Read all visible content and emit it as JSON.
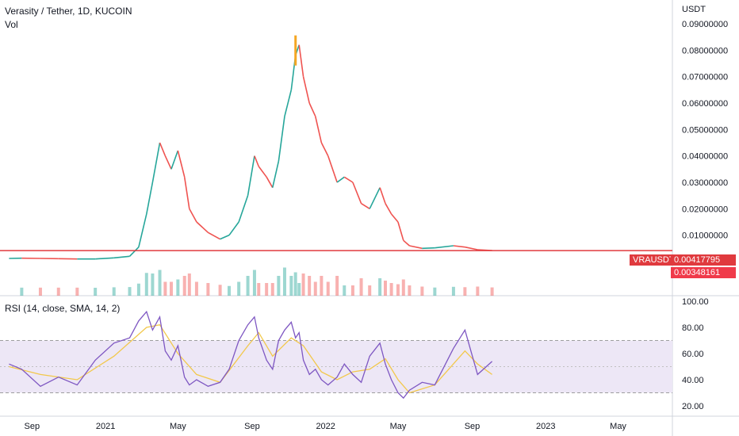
{
  "header": {
    "symbol_title": "Verasity / Tether, 1D, KUCOIN",
    "volume_label": "Vol",
    "currency": "USDT"
  },
  "badges": {
    "symbol": "VRAUSDT",
    "last_price": "0.00417795",
    "secondary_value": "0.00348161"
  },
  "rsi": {
    "title": "RSI (14, close, SMA, 14, 2)",
    "upper_band": 70,
    "lower_band": 30,
    "ticks": [
      "100.00",
      "80.00",
      "60.00",
      "40.00",
      "20.00"
    ]
  },
  "colors": {
    "up": "#26a69a",
    "down": "#ef5350",
    "highlight": "#f5a623",
    "price_line": "#e03a3e",
    "rsi_line": "#7e57c2",
    "rsi_sma": "#f2c84b",
    "rsi_band": "#ede7f6"
  },
  "chart_data": [
    {
      "type": "line",
      "title": "Verasity / Tether, 1D, KUCOIN",
      "y_axis_label": "USDT",
      "x_ticks": [
        "Sep",
        "2021",
        "May",
        "Sep",
        "2022",
        "May",
        "Sep",
        "2023",
        "May"
      ],
      "y_ticks": [
        "0.09000000",
        "0.08000000",
        "0.07000000",
        "0.06000000",
        "0.05000000",
        "0.04000000",
        "0.03000000",
        "0.02000000",
        "0.01000000"
      ],
      "ylim": [
        0.0,
        0.09
      ],
      "series": [
        {
          "values": [
            [
              "2020-07-25",
              0.0012
            ],
            [
              "2020-08-15",
              0.0013
            ],
            [
              "2020-09-15",
              0.0012
            ],
            [
              "2020-10-15",
              0.0011
            ],
            [
              "2020-11-15",
              0.001
            ],
            [
              "2020-12-15",
              0.001
            ],
            [
              "2021-01-15",
              0.0014
            ],
            [
              "2021-02-10",
              0.002
            ],
            [
              "2021-02-25",
              0.0055
            ],
            [
              "2021-03-10",
              0.018
            ],
            [
              "2021-03-20",
              0.03
            ],
            [
              "2021-04-01",
              0.045
            ],
            [
              "2021-04-10",
              0.04
            ],
            [
              "2021-04-20",
              0.035
            ],
            [
              "2021-05-01",
              0.042
            ],
            [
              "2021-05-12",
              0.032
            ],
            [
              "2021-05-20",
              0.02
            ],
            [
              "2021-06-01",
              0.015
            ],
            [
              "2021-06-20",
              0.011
            ],
            [
              "2021-07-10",
              0.0085
            ],
            [
              "2021-07-25",
              0.01
            ],
            [
              "2021-08-10",
              0.015
            ],
            [
              "2021-08-25",
              0.025
            ],
            [
              "2021-09-05",
              0.04
            ],
            [
              "2021-09-12",
              0.036
            ],
            [
              "2021-09-25",
              0.032
            ],
            [
              "2021-10-05",
              0.028
            ],
            [
              "2021-10-15",
              0.038
            ],
            [
              "2021-10-25",
              0.055
            ],
            [
              "2021-11-05",
              0.065
            ],
            [
              "2021-11-12",
              0.078
            ],
            [
              "2021-11-18",
              0.082
            ],
            [
              "2021-11-25",
              0.07
            ],
            [
              "2021-12-05",
              0.06
            ],
            [
              "2021-12-15",
              0.055
            ],
            [
              "2021-12-25",
              0.045
            ],
            [
              "2022-01-05",
              0.04
            ],
            [
              "2022-01-20",
              0.03
            ],
            [
              "2022-02-01",
              0.032
            ],
            [
              "2022-02-15",
              0.03
            ],
            [
              "2022-03-01",
              0.022
            ],
            [
              "2022-03-15",
              0.02
            ],
            [
              "2022-04-01",
              0.028
            ],
            [
              "2022-04-10",
              0.022
            ],
            [
              "2022-04-20",
              0.018
            ],
            [
              "2022-05-01",
              0.015
            ],
            [
              "2022-05-10",
              0.008
            ],
            [
              "2022-05-20",
              0.006
            ],
            [
              "2022-06-10",
              0.005
            ],
            [
              "2022-07-01",
              0.0052
            ],
            [
              "2022-08-01",
              0.006
            ],
            [
              "2022-08-20",
              0.0055
            ],
            [
              "2022-09-10",
              0.0045
            ],
            [
              "2022-10-04",
              0.0042
            ]
          ]
        }
      ],
      "last_price": 0.00417795
    },
    {
      "type": "line",
      "title": "RSI (14, close, SMA, 14, 2)",
      "ylim": [
        20,
        100
      ],
      "y_ticks": [
        "100.00",
        "80.00",
        "60.00",
        "40.00",
        "20.00"
      ],
      "series": [
        {
          "values": [
            [
              "2020-07-25",
              52
            ],
            [
              "2020-08-15",
              48
            ],
            [
              "2020-09-15",
              35
            ],
            [
              "2020-10-15",
              42
            ],
            [
              "2020-11-15",
              36
            ],
            [
              "2020-12-15",
              55
            ],
            [
              "2021-01-15",
              68
            ],
            [
              "2021-02-10",
              72
            ],
            [
              "2021-02-25",
              85
            ],
            [
              "2021-03-10",
              92
            ],
            [
              "2021-03-20",
              78
            ],
            [
              "2021-04-01",
              88
            ],
            [
              "2021-04-10",
              62
            ],
            [
              "2021-04-20",
              55
            ],
            [
              "2021-05-01",
              66
            ],
            [
              "2021-05-12",
              42
            ],
            [
              "2021-05-20",
              36
            ],
            [
              "2021-06-01",
              40
            ],
            [
              "2021-06-20",
              35
            ],
            [
              "2021-07-10",
              38
            ],
            [
              "2021-07-25",
              48
            ],
            [
              "2021-08-10",
              70
            ],
            [
              "2021-08-25",
              82
            ],
            [
              "2021-09-05",
              88
            ],
            [
              "2021-09-12",
              72
            ],
            [
              "2021-09-25",
              55
            ],
            [
              "2021-10-05",
              48
            ],
            [
              "2021-10-15",
              70
            ],
            [
              "2021-10-25",
              78
            ],
            [
              "2021-11-05",
              84
            ],
            [
              "2021-11-12",
              72
            ],
            [
              "2021-11-18",
              76
            ],
            [
              "2021-11-25",
              55
            ],
            [
              "2021-12-05",
              44
            ],
            [
              "2021-12-15",
              48
            ],
            [
              "2021-12-25",
              40
            ],
            [
              "2022-01-05",
              36
            ],
            [
              "2022-01-20",
              42
            ],
            [
              "2022-02-01",
              52
            ],
            [
              "2022-02-15",
              44
            ],
            [
              "2022-03-01",
              38
            ],
            [
              "2022-03-15",
              58
            ],
            [
              "2022-04-01",
              68
            ],
            [
              "2022-04-10",
              52
            ],
            [
              "2022-04-20",
              40
            ],
            [
              "2022-05-01",
              30
            ],
            [
              "2022-05-10",
              26
            ],
            [
              "2022-05-20",
              32
            ],
            [
              "2022-06-10",
              38
            ],
            [
              "2022-07-01",
              36
            ],
            [
              "2022-08-01",
              64
            ],
            [
              "2022-08-20",
              78
            ],
            [
              "2022-09-10",
              44
            ],
            [
              "2022-10-04",
              54
            ]
          ]
        },
        {
          "values": [
            [
              "2020-07-25",
              50
            ],
            [
              "2020-09-15",
              44
            ],
            [
              "2020-11-15",
              40
            ],
            [
              "2021-01-15",
              58
            ],
            [
              "2021-03-10",
              80
            ],
            [
              "2021-04-01",
              82
            ],
            [
              "2021-05-01",
              60
            ],
            [
              "2021-06-01",
              44
            ],
            [
              "2021-07-10",
              38
            ],
            [
              "2021-08-25",
              66
            ],
            [
              "2021-09-12",
              76
            ],
            [
              "2021-10-05",
              58
            ],
            [
              "2021-11-05",
              72
            ],
            [
              "2021-11-25",
              66
            ],
            [
              "2021-12-25",
              46
            ],
            [
              "2022-01-20",
              40
            ],
            [
              "2022-02-15",
              46
            ],
            [
              "2022-03-15",
              48
            ],
            [
              "2022-04-10",
              56
            ],
            [
              "2022-05-01",
              40
            ],
            [
              "2022-05-20",
              30
            ],
            [
              "2022-07-01",
              36
            ],
            [
              "2022-08-20",
              62
            ],
            [
              "2022-09-10",
              52
            ],
            [
              "2022-10-04",
              44
            ]
          ]
        }
      ],
      "bands": [
        70,
        30
      ]
    }
  ]
}
